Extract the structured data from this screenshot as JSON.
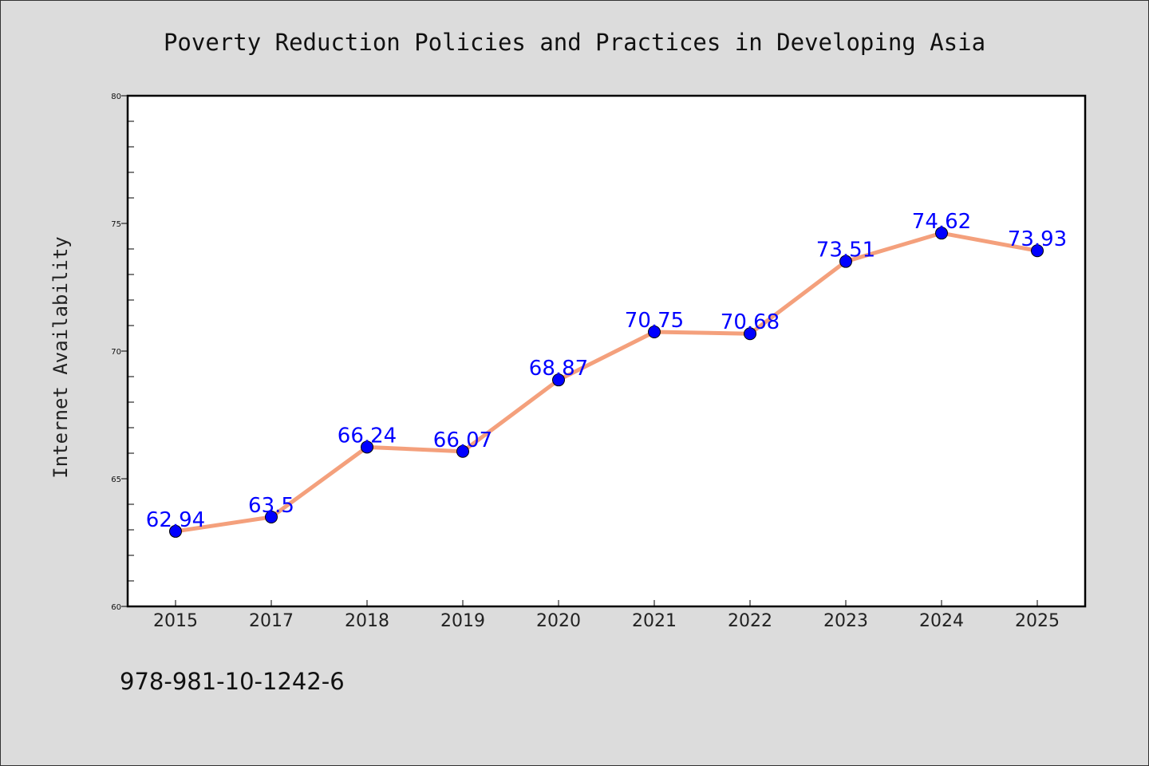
{
  "chart_data": {
    "type": "line",
    "title": "Poverty Reduction Policies and Practices in Developing Asia",
    "xlabel": "",
    "ylabel": "Internet Availability",
    "x": [
      "2015",
      "2017",
      "2018",
      "2019",
      "2020",
      "2021",
      "2022",
      "2023",
      "2024",
      "2025"
    ],
    "series": [
      {
        "values": [
          62.94,
          63.5,
          66.24,
          66.07,
          68.87,
          70.75,
          70.68,
          73.51,
          74.62,
          73.93
        ],
        "labels": [
          "62.94",
          "63.5",
          "66.24",
          "66.07",
          "68.87",
          "70.75",
          "70.68",
          "73.51",
          "74.62",
          "73.93"
        ]
      }
    ],
    "ylim": [
      60,
      80
    ],
    "yticks": [
      "60",
      "65",
      "70",
      "75",
      "80"
    ],
    "grid": false,
    "legend": "none",
    "colors": {
      "line": "#f4a07c",
      "marker": "#0000ff",
      "label": "#0000ff"
    }
  },
  "annotation": "978-981-10-1242-6"
}
